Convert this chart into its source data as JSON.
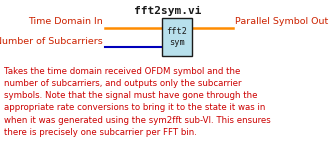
{
  "title": "fft2sym.vi",
  "title_fontsize": 8,
  "title_color": "#1a1a1a",
  "box_label": "fft2\nsym",
  "box_facecolor": "#b8e0ec",
  "box_edgecolor": "#1a1a1a",
  "input_top_label": "Time Domain In",
  "input_bottom_label": "Number of Subcarriers",
  "output_label": "Parallel Symbol Out",
  "line_color_orange": "#ff8c00",
  "line_color_blue": "#0000bb",
  "body_text": "Takes the time domain received OFDM symbol and the\nnumber of subcarriers, and outputs only the subcarrier\nsymbols. Note that the signal must have gone through the\nappropriate rate conversions to bring it to the state it was in\nwhen it was generated using the sym2fft sub-VI. This ensures\nthere is precisely one subcarrier per FFT bin.",
  "body_fontsize": 6.2,
  "body_text_color": "#cc0000",
  "label_fontsize": 6.8,
  "label_color": "#cc2200",
  "bg_color": "#ffffff"
}
